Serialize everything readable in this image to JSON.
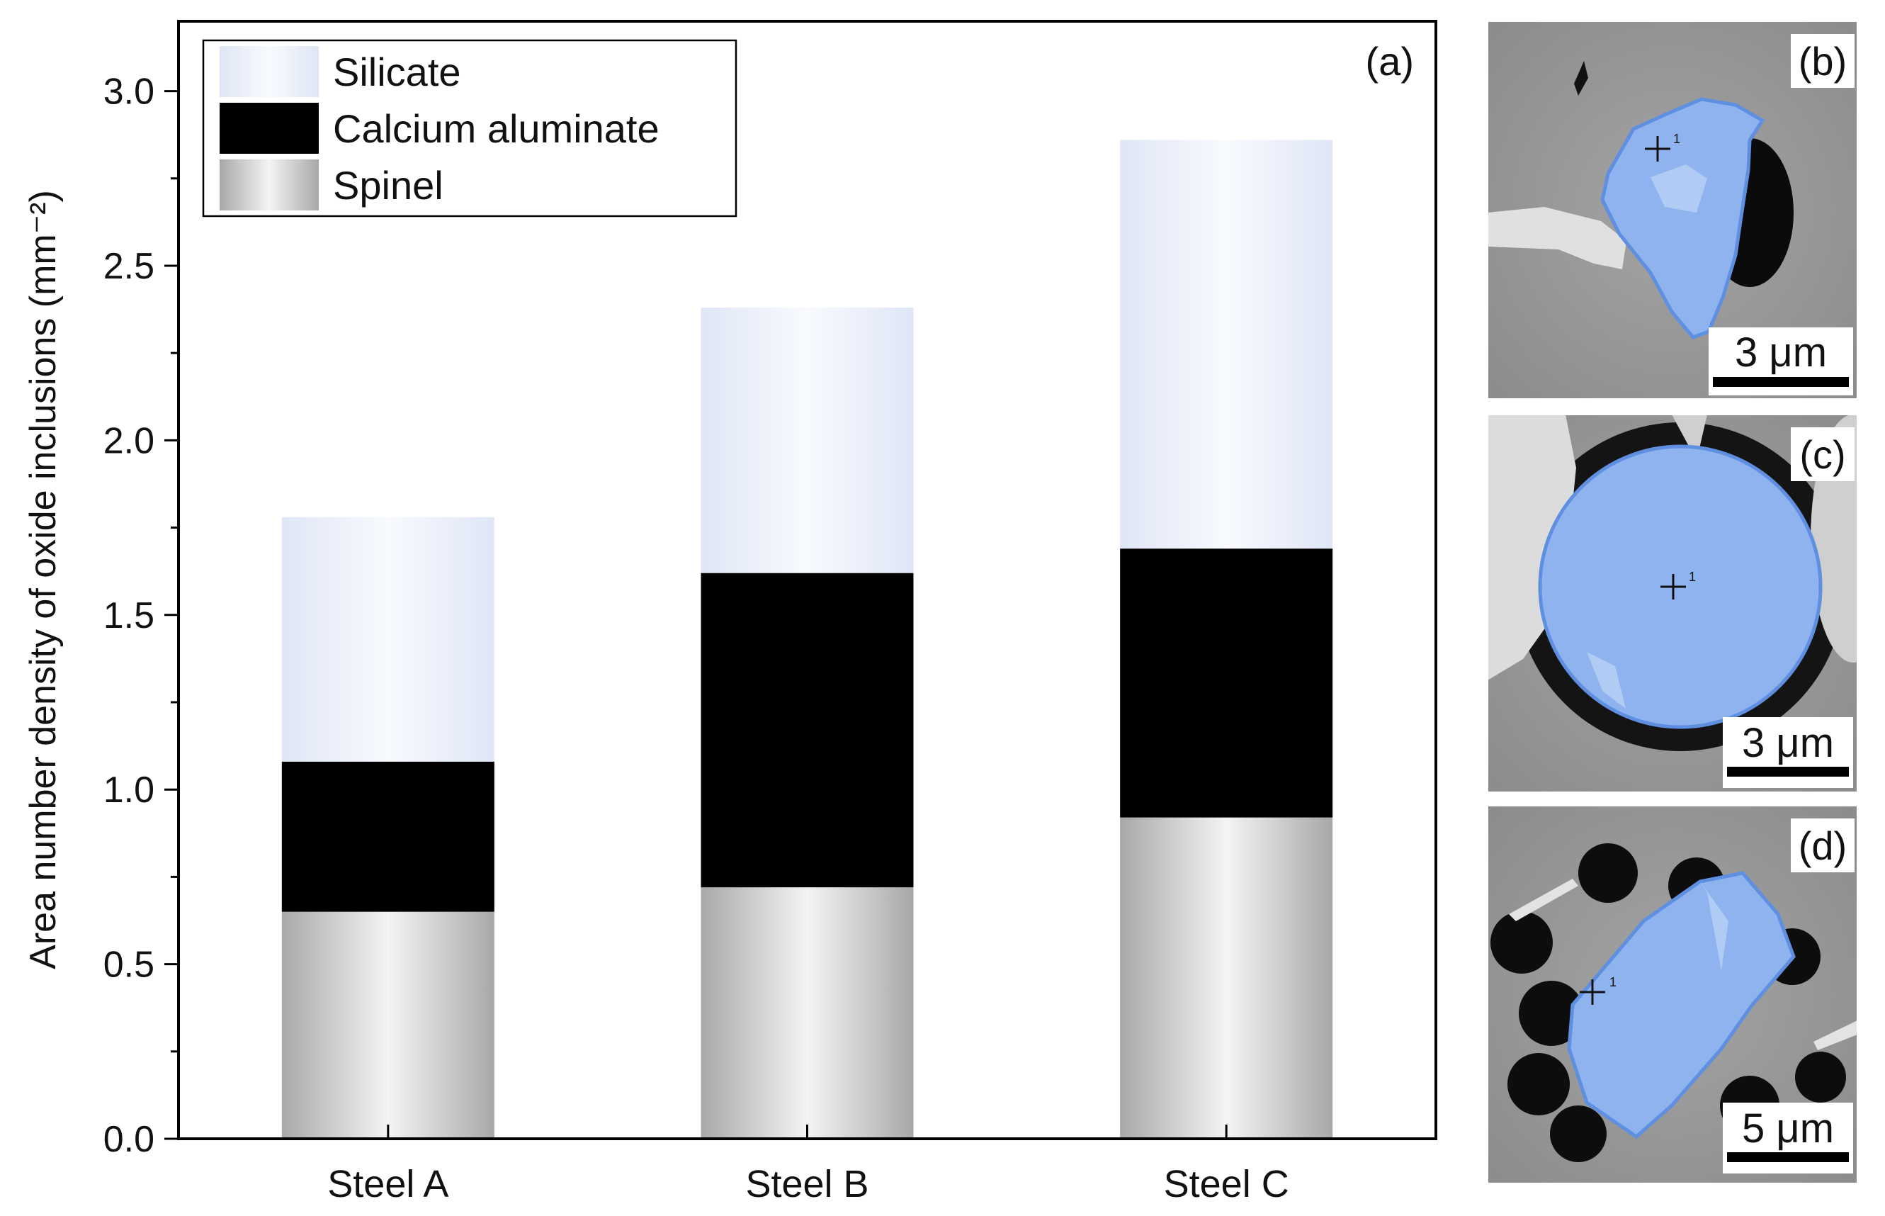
{
  "chart_data": {
    "type": "bar",
    "stacked": true,
    "panel_label": "(a)",
    "categories": [
      "Steel A",
      "Steel B",
      "Steel C"
    ],
    "series": [
      {
        "name": "Spinel",
        "values": [
          0.65,
          0.72,
          0.92
        ]
      },
      {
        "name": "Calcium aluminate",
        "values": [
          0.43,
          0.9,
          0.77
        ]
      },
      {
        "name": "Silicate",
        "values": [
          0.7,
          0.76,
          1.17
        ]
      }
    ],
    "legend_order": [
      "Silicate",
      "Calcium aluminate",
      "Spinel"
    ],
    "legend_position": "top-left",
    "xlabel": "",
    "ylabel": "Area number density of oxide inclusions (mm⁻²)",
    "ylim": [
      0,
      3.2
    ],
    "yticks": [
      "0.0",
      "0.5",
      "1.0",
      "1.5",
      "2.0",
      "2.5",
      "3.0"
    ],
    "grid": false,
    "colors": {
      "Spinel": {
        "edge": "#a8a8a8",
        "center": "#f4f4f4"
      },
      "Calcium aluminate": {
        "edge": "#8aa1cf",
        "center": "#f0f4fc"
      },
      "Silicate": {
        "edge": "#dfe6f5",
        "center": "#f8fafe"
      }
    }
  },
  "sem_panels": [
    {
      "label": "(b)",
      "scale_bar": "3 μm",
      "marker": "1"
    },
    {
      "label": "(c)",
      "scale_bar": "3 μm",
      "marker": "1"
    },
    {
      "label": "(d)",
      "scale_bar": "5 μm",
      "marker": "1"
    }
  ]
}
